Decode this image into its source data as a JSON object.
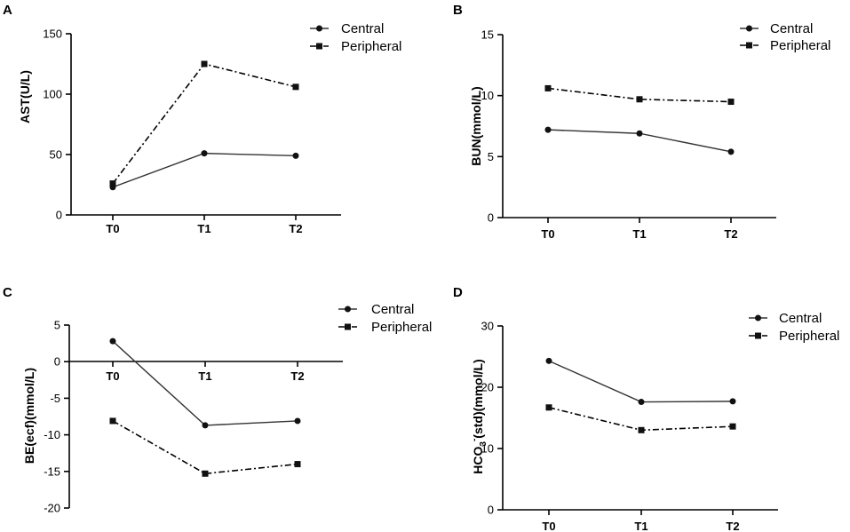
{
  "chart_data": [
    {
      "panel": "A",
      "type": "line",
      "categories": [
        "T0",
        "T1",
        "T2"
      ],
      "ylabel": "AST(U/L)",
      "ylim": [
        0,
        150
      ],
      "yticks": [
        0,
        50,
        100,
        150
      ],
      "legend_position": "top-right",
      "series": [
        {
          "name": "Central",
          "marker": "circle",
          "style": "solid",
          "values": [
            23,
            51,
            49
          ]
        },
        {
          "name": "Peripheral",
          "marker": "square",
          "style": "dash-dot",
          "values": [
            26,
            125,
            106
          ]
        }
      ]
    },
    {
      "panel": "B",
      "type": "line",
      "categories": [
        "T0",
        "T1",
        "T2"
      ],
      "ylabel": "BUN(mmol/L)",
      "ylim": [
        0,
        15
      ],
      "yticks": [
        0,
        5,
        10,
        15
      ],
      "legend_position": "top-right",
      "series": [
        {
          "name": "Central",
          "marker": "circle",
          "style": "solid",
          "values": [
            7.2,
            6.9,
            5.4
          ]
        },
        {
          "name": "Peripheral",
          "marker": "square",
          "style": "dash-dot",
          "values": [
            10.6,
            9.7,
            9.5
          ]
        }
      ]
    },
    {
      "panel": "C",
      "type": "line",
      "categories": [
        "T0",
        "T1",
        "T2"
      ],
      "ylabel": "BE(ecf)(mmol/L)",
      "ylim": [
        -20,
        5
      ],
      "yticks": [
        5,
        0,
        -5,
        -10,
        -15,
        -20
      ],
      "ytick_labels": [
        "5",
        "0",
        "-5",
        "-10",
        "-15",
        "-20"
      ],
      "xaxis_at_zero": true,
      "legend_position": "top-right",
      "series": [
        {
          "name": "Central",
          "marker": "circle",
          "style": "solid",
          "values": [
            2.8,
            -8.7,
            -8.1
          ]
        },
        {
          "name": "Peripheral",
          "marker": "square",
          "style": "dash-dot",
          "values": [
            -8.1,
            -15.3,
            -14.0
          ]
        }
      ]
    },
    {
      "panel": "D",
      "type": "line",
      "categories": [
        "T0",
        "T1",
        "T2"
      ],
      "ylabel_parts": {
        "a": "HCO",
        "sub": "3",
        "sup": "-",
        "b": "(std)(mmol/L)"
      },
      "ylim": [
        0,
        30
      ],
      "yticks": [
        0,
        10,
        20,
        30
      ],
      "legend_position": "top-right",
      "series": [
        {
          "name": "Central",
          "marker": "circle",
          "style": "solid",
          "values": [
            24.3,
            17.6,
            17.7
          ]
        },
        {
          "name": "Peripheral",
          "marker": "square",
          "style": "dash-dot",
          "values": [
            16.7,
            13.0,
            13.6
          ]
        }
      ]
    }
  ]
}
